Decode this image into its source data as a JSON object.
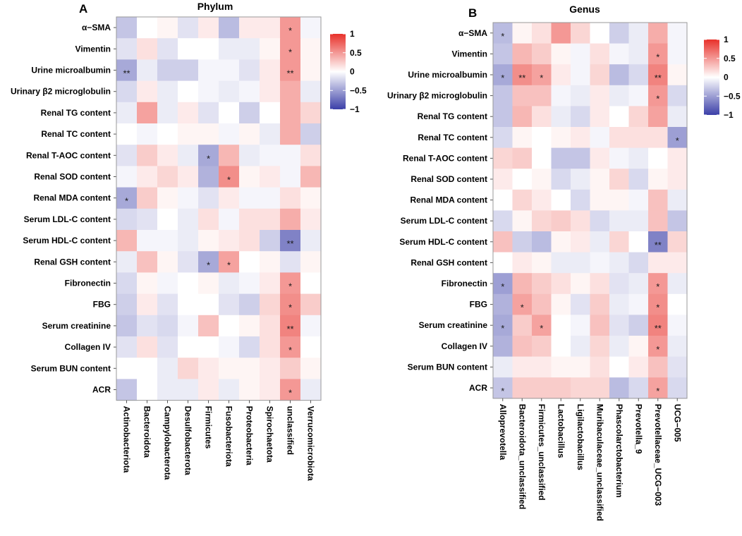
{
  "colors": {
    "negative": "#3b3fa8",
    "zero": "#ffffff",
    "positive": "#e8312a",
    "frame": "#999999"
  },
  "chart_data": [
    {
      "type": "heatmap",
      "panel_label": "A",
      "title": "Phylum",
      "rows": [
        "α−SMA",
        "Vimentin",
        "Urine microalbumin",
        "Urinary β2 microglobulin",
        "Renal TG content",
        "Renal TC content",
        "Renal T-AOC content",
        "Renal SOD content",
        "Renal MDA content",
        "Serum LDL-C content",
        "Serum HDL-C content",
        "Renal GSH content",
        "Fibronectin",
        "FBG",
        "Serum creatinine",
        "Collagen IV",
        "Serum BUN content",
        "ACR"
      ],
      "columns": [
        "Actinobacteriota",
        "Bacteroidota",
        "Campylobacterota",
        "Desulfobacterota",
        "Firmicutes",
        "Fusobacteriota",
        "Proteobacteria",
        "Spirochaetota",
        "unclassified",
        "Verrucomicrobiota"
      ],
      "values": [
        [
          -0.3,
          0.0,
          0.05,
          -0.15,
          0.1,
          -0.35,
          0.1,
          0.1,
          0.5,
          -0.05
        ],
        [
          -0.15,
          0.15,
          -0.15,
          0.0,
          0.0,
          -0.1,
          -0.1,
          0.05,
          0.5,
          0.05
        ],
        [
          -0.45,
          -0.1,
          -0.25,
          -0.25,
          -0.05,
          -0.05,
          -0.15,
          0.1,
          0.5,
          0.05
        ],
        [
          -0.2,
          0.1,
          -0.1,
          0.0,
          -0.05,
          -0.1,
          -0.05,
          0.1,
          0.4,
          -0.1
        ],
        [
          -0.1,
          0.45,
          -0.1,
          0.1,
          -0.15,
          0.0,
          -0.25,
          0.0,
          0.4,
          0.2
        ],
        [
          0.0,
          -0.05,
          0.0,
          0.05,
          0.05,
          -0.05,
          0.05,
          -0.1,
          0.4,
          -0.25
        ],
        [
          -0.15,
          0.25,
          0.1,
          -0.1,
          -0.45,
          0.35,
          -0.1,
          -0.05,
          -0.05,
          0.15
        ],
        [
          -0.05,
          0.1,
          0.2,
          0.1,
          -0.4,
          0.55,
          0.05,
          0.1,
          -0.05,
          0.35
        ],
        [
          -0.45,
          0.25,
          0.05,
          -0.05,
          -0.15,
          0.1,
          -0.05,
          -0.05,
          0.15,
          0.05
        ],
        [
          -0.2,
          -0.15,
          0.0,
          -0.1,
          0.15,
          -0.05,
          0.15,
          0.15,
          0.4,
          0.1
        ],
        [
          0.35,
          -0.05,
          -0.05,
          -0.1,
          0.05,
          0.1,
          0.15,
          -0.25,
          -0.65,
          -0.1
        ],
        [
          -0.1,
          0.3,
          0.05,
          -0.15,
          -0.45,
          0.45,
          0.0,
          0.05,
          -0.15,
          0.05
        ],
        [
          -0.2,
          0.05,
          -0.05,
          0.0,
          0.05,
          -0.1,
          -0.05,
          0.1,
          0.5,
          0.0
        ],
        [
          -0.25,
          0.1,
          -0.15,
          0.0,
          0.0,
          -0.15,
          -0.25,
          0.2,
          0.55,
          0.25
        ],
        [
          -0.3,
          -0.15,
          -0.2,
          -0.05,
          0.3,
          0.0,
          0.05,
          0.15,
          0.6,
          -0.05
        ],
        [
          -0.15,
          0.15,
          -0.15,
          0.0,
          0.0,
          -0.05,
          -0.2,
          0.15,
          0.5,
          0.0
        ],
        [
          0.0,
          0.0,
          -0.1,
          0.2,
          0.1,
          0.05,
          0.05,
          0.1,
          0.25,
          0.05
        ],
        [
          -0.3,
          0.0,
          -0.1,
          -0.1,
          0.1,
          -0.1,
          0.05,
          0.1,
          0.5,
          -0.1
        ]
      ],
      "annotations": [
        {
          "row": 0,
          "col": 8,
          "text": "*"
        },
        {
          "row": 1,
          "col": 8,
          "text": "*"
        },
        {
          "row": 2,
          "col": 0,
          "text": "**"
        },
        {
          "row": 2,
          "col": 8,
          "text": "**"
        },
        {
          "row": 6,
          "col": 4,
          "text": "*"
        },
        {
          "row": 7,
          "col": 5,
          "text": "*"
        },
        {
          "row": 8,
          "col": 0,
          "text": "*"
        },
        {
          "row": 10,
          "col": 8,
          "text": "**"
        },
        {
          "row": 11,
          "col": 4,
          "text": "*"
        },
        {
          "row": 11,
          "col": 5,
          "text": "*"
        },
        {
          "row": 12,
          "col": 8,
          "text": "*"
        },
        {
          "row": 13,
          "col": 8,
          "text": "*"
        },
        {
          "row": 14,
          "col": 8,
          "text": "**"
        },
        {
          "row": 15,
          "col": 8,
          "text": "*"
        },
        {
          "row": 17,
          "col": 8,
          "text": "*"
        }
      ],
      "color_range": [
        -1,
        1
      ],
      "legend_ticks": [
        "1",
        "0.5",
        "0",
        "−0.5",
        "−1"
      ]
    },
    {
      "type": "heatmap",
      "panel_label": "B",
      "title": "Genus",
      "rows": [
        "α−SMA",
        "Vimentin",
        "Urine microalbumin",
        "Urinary β2 microglobulin",
        "Renal TG content",
        "Renal TC content",
        "Renal T-AOC content",
        "Renal SOD content",
        "Renal MDA content",
        "Serum LDL-C content",
        "Serum HDL-C content",
        "Renal GSH content",
        "Fibronectin",
        "FBG",
        "Serum creatinine",
        "Collagen IV",
        "Serum BUN content",
        "ACR"
      ],
      "columns": [
        "Alloprevotella",
        "Bacteroidota_unclassified",
        "Firmicutes_unclassified",
        "Lactobacillus",
        "Ligilactobacillus",
        "Muribaculaceae_unclassified",
        "Phascolarctobacterium",
        "Prevotella_9",
        "Prevotellaceae_UCG−003",
        "UCG−005"
      ],
      "values": [
        [
          -0.35,
          0.05,
          0.15,
          0.5,
          0.2,
          0.0,
          -0.25,
          -0.1,
          0.4,
          -0.05
        ],
        [
          -0.3,
          0.35,
          0.25,
          0.05,
          -0.05,
          0.15,
          -0.05,
          -0.1,
          0.5,
          -0.05
        ],
        [
          -0.45,
          0.55,
          0.45,
          0.1,
          -0.05,
          0.2,
          -0.35,
          -0.2,
          0.6,
          0.05
        ],
        [
          -0.3,
          0.3,
          0.3,
          -0.05,
          -0.1,
          0.1,
          -0.1,
          -0.05,
          0.5,
          -0.2
        ],
        [
          -0.3,
          0.35,
          0.15,
          -0.1,
          -0.2,
          0.1,
          0.0,
          0.2,
          0.45,
          -0.1
        ],
        [
          -0.2,
          0.05,
          0.0,
          0.05,
          0.1,
          -0.05,
          0.15,
          0.15,
          0.15,
          -0.5
        ],
        [
          0.2,
          0.25,
          0.0,
          -0.3,
          -0.3,
          0.1,
          -0.05,
          -0.1,
          0.0,
          0.1
        ],
        [
          0.1,
          0.0,
          0.05,
          -0.2,
          -0.1,
          0.05,
          0.2,
          -0.2,
          0.05,
          0.1
        ],
        [
          0.0,
          0.2,
          0.1,
          0.0,
          -0.2,
          0.05,
          0.05,
          -0.05,
          0.3,
          -0.1
        ],
        [
          -0.2,
          0.05,
          0.2,
          0.25,
          0.15,
          -0.2,
          -0.1,
          -0.1,
          0.3,
          -0.3
        ],
        [
          0.3,
          -0.25,
          -0.35,
          0.05,
          0.1,
          -0.1,
          0.2,
          0.0,
          -0.65,
          0.2
        ],
        [
          0.0,
          0.1,
          0.05,
          -0.1,
          -0.1,
          -0.05,
          -0.1,
          -0.2,
          0.1,
          0.1
        ],
        [
          -0.5,
          0.35,
          0.25,
          0.15,
          0.05,
          0.15,
          -0.15,
          -0.1,
          0.5,
          -0.1
        ],
        [
          -0.4,
          0.45,
          0.3,
          0.05,
          -0.15,
          0.25,
          -0.1,
          -0.05,
          0.55,
          0.0
        ],
        [
          -0.45,
          0.25,
          0.45,
          0.0,
          -0.05,
          0.3,
          -0.15,
          -0.25,
          0.6,
          -0.05
        ],
        [
          -0.4,
          0.3,
          0.25,
          0.0,
          -0.1,
          0.2,
          -0.1,
          0.05,
          0.5,
          -0.1
        ],
        [
          -0.1,
          0.1,
          0.1,
          0.05,
          0.05,
          0.15,
          0.0,
          0.1,
          0.3,
          -0.15
        ],
        [
          -0.3,
          0.25,
          0.25,
          0.25,
          0.2,
          0.2,
          -0.35,
          -0.2,
          0.45,
          -0.2
        ]
      ],
      "annotations": [
        {
          "row": 0,
          "col": 0,
          "text": "*"
        },
        {
          "row": 1,
          "col": 8,
          "text": "*"
        },
        {
          "row": 2,
          "col": 0,
          "text": "*"
        },
        {
          "row": 2,
          "col": 1,
          "text": "**"
        },
        {
          "row": 2,
          "col": 2,
          "text": "*"
        },
        {
          "row": 2,
          "col": 8,
          "text": "**"
        },
        {
          "row": 3,
          "col": 8,
          "text": "*"
        },
        {
          "row": 5,
          "col": 9,
          "text": "*"
        },
        {
          "row": 10,
          "col": 8,
          "text": "**"
        },
        {
          "row": 12,
          "col": 0,
          "text": "*"
        },
        {
          "row": 12,
          "col": 8,
          "text": "*"
        },
        {
          "row": 13,
          "col": 1,
          "text": "*"
        },
        {
          "row": 13,
          "col": 8,
          "text": "*"
        },
        {
          "row": 14,
          "col": 0,
          "text": "*"
        },
        {
          "row": 14,
          "col": 2,
          "text": "*"
        },
        {
          "row": 14,
          "col": 8,
          "text": "**"
        },
        {
          "row": 15,
          "col": 8,
          "text": "*"
        },
        {
          "row": 17,
          "col": 0,
          "text": "*"
        },
        {
          "row": 17,
          "col": 8,
          "text": "*"
        }
      ],
      "color_range": [
        -1,
        1
      ],
      "legend_ticks": [
        "1",
        "0.5",
        "0",
        "−0.5",
        "−1"
      ]
    }
  ]
}
